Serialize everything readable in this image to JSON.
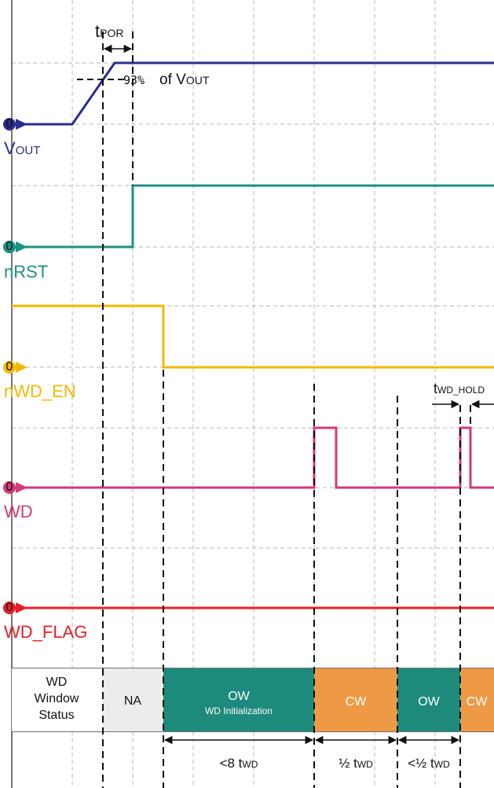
{
  "colors": {
    "vout": "#2a2d8c",
    "nrst": "#1c9283",
    "nwd_en": "#f5b800",
    "wd": "#d23a78",
    "wd_flag": "#e8202a",
    "ow": "#1d8a7c",
    "cw": "#ee9a45",
    "na": "#ececec"
  },
  "signals": {
    "vout": {
      "label_main": "V",
      "label_sub": "OUT",
      "marker": "0"
    },
    "nrst": {
      "label": "nRST",
      "marker": "0"
    },
    "nwd_en": {
      "label": "nWD_EN",
      "marker": "0"
    },
    "wd": {
      "label": "WD",
      "marker": "0"
    },
    "wd_flag": {
      "label": "WD_FLAG",
      "marker": "0"
    }
  },
  "annotations": {
    "tpor_main": "t",
    "tpor_sub": "POR",
    "threshold_pct": "93%",
    "threshold_of": "of V",
    "threshold_sub": "OUT",
    "twd_hold_main": "t",
    "twd_hold_sub": "WD_HOLD"
  },
  "status_row": {
    "header_lines": [
      "WD",
      "Window",
      "Status"
    ],
    "na": "NA",
    "ow1": "OW",
    "ow1_sub": "WD Initialization",
    "cw1": "CW",
    "ow2": "OW",
    "cw2": "CW"
  },
  "durations": {
    "d1_prefix": "<8 t",
    "d1_sub": "WD",
    "d2_prefix": "½ t",
    "d2_sub": "WD",
    "d3_prefix": "<½ t",
    "d3_sub": "WD"
  }
}
